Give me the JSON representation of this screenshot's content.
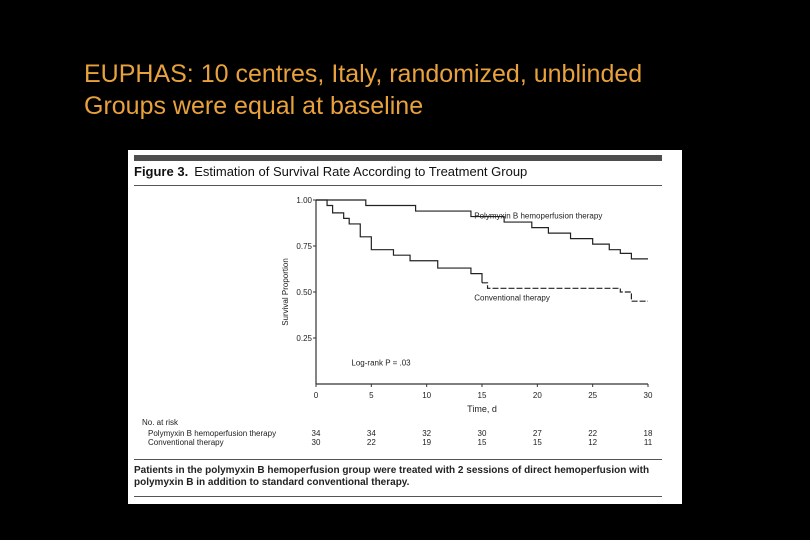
{
  "slide": {
    "title_line1": "EUPHAS: 10 centres, Italy, randomized, unblinded",
    "title_line2": "Groups were equal at baseline",
    "title_color": "#e8a13c",
    "background": "#000000"
  },
  "figure": {
    "label": "Figure 3.",
    "heading": "Estimation of Survival Rate According to Treatment Group",
    "caption": "Patients in the polymyxin B hemoperfusion group were treated with 2 sessions of direct hemoperfusion with polymyxin B in addition to standard conventional therapy."
  },
  "chart_data": {
    "type": "line",
    "subtype": "kaplan-meier-step",
    "xlabel": "Time, d",
    "ylabel": "Survival Proportion",
    "xlim": [
      0,
      30
    ],
    "ylim": [
      0,
      1.0
    ],
    "xticks": [
      0,
      5,
      10,
      15,
      20,
      25,
      30
    ],
    "yticks": [
      0.25,
      0.5,
      0.75,
      1.0
    ],
    "ytick_labels": [
      "0.25",
      "0.50",
      "0.75",
      "1.00"
    ],
    "grid": false,
    "annotation": "Log-rank P = .03",
    "series": [
      {
        "name": "Polymyxin B hemoperfusion therapy",
        "label_text": "Polymyxin B hemoperfusion therapy",
        "style": "solid",
        "steps": [
          [
            0,
            1.0
          ],
          [
            4.5,
            0.97
          ],
          [
            9,
            0.94
          ],
          [
            14,
            0.91
          ],
          [
            17,
            0.88
          ],
          [
            19.5,
            0.85
          ],
          [
            21,
            0.82
          ],
          [
            23,
            0.79
          ],
          [
            25,
            0.76
          ],
          [
            26.5,
            0.73
          ],
          [
            27.5,
            0.71
          ],
          [
            28.5,
            0.68
          ],
          [
            30,
            0.68
          ]
        ]
      },
      {
        "name": "Conventional therapy",
        "label_text": "Conventional therapy",
        "style": "solid-then-dashed",
        "dash_from": 15,
        "steps": [
          [
            0,
            1.0
          ],
          [
            1,
            0.97
          ],
          [
            1.5,
            0.93
          ],
          [
            2.5,
            0.9
          ],
          [
            3,
            0.87
          ],
          [
            4,
            0.8
          ],
          [
            5,
            0.73
          ],
          [
            7,
            0.7
          ],
          [
            8.5,
            0.67
          ],
          [
            11,
            0.63
          ],
          [
            14,
            0.6
          ],
          [
            15,
            0.55
          ],
          [
            15.5,
            0.52
          ],
          [
            27.5,
            0.5
          ],
          [
            28.5,
            0.45
          ],
          [
            30,
            0.45
          ]
        ]
      }
    ],
    "risk_table": {
      "header": "No. at risk",
      "times": [
        0,
        5,
        10,
        15,
        20,
        25,
        30
      ],
      "rows": [
        {
          "label": "Polymyxin B hemoperfusion therapy",
          "values": [
            "34",
            "34",
            "32",
            "30",
            "27",
            "22",
            "18"
          ]
        },
        {
          "label": "Conventional therapy",
          "values": [
            "30",
            "22",
            "19",
            "15",
            "15",
            "12",
            "11"
          ]
        }
      ]
    }
  }
}
